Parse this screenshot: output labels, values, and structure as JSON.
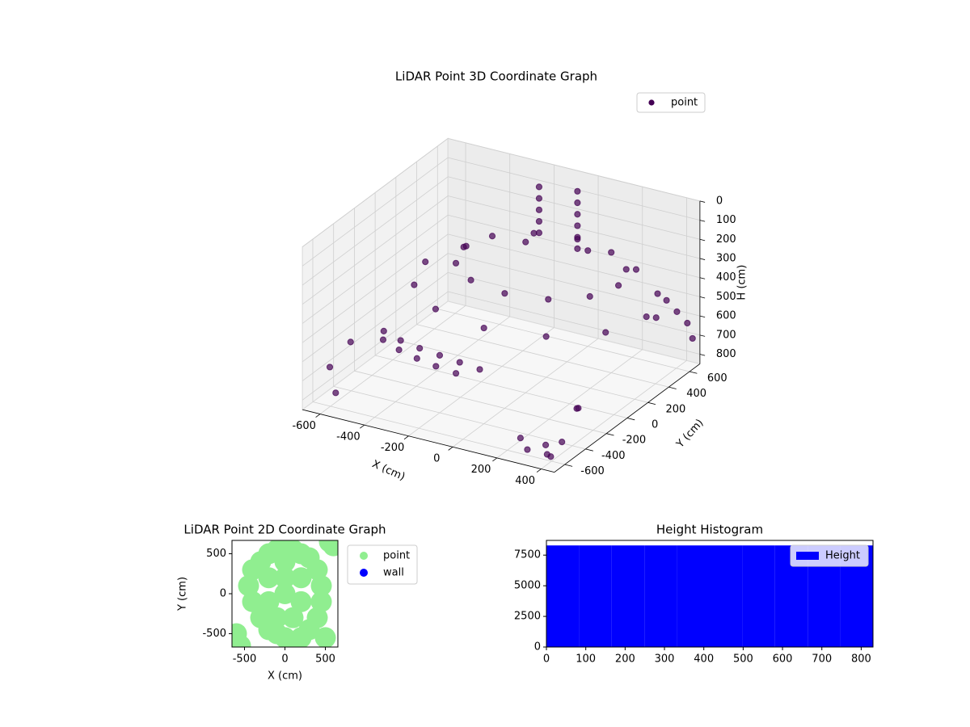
{
  "chart_data": [
    {
      "type": "scatter3d",
      "title": "LiDAR Point 3D Coordinate Graph",
      "xlabel": "X (cm)",
      "ylabel": "Y (cm)",
      "zlabel": "H (cm)",
      "series": [
        {
          "name": "point",
          "color": "#440154",
          "x": [
            -150,
            -150,
            -150,
            -150,
            -150,
            0,
            0,
            0,
            0,
            0,
            0,
            350,
            303,
            175,
            0,
            -175,
            -303,
            -350,
            -303,
            -175,
            0,
            175,
            303,
            500,
            433,
            250,
            0,
            -250,
            -433,
            -500,
            -433,
            -250,
            0,
            250,
            433,
            -500,
            -400,
            -300,
            -200,
            -100,
            0,
            -550,
            -450,
            -350,
            -250,
            -150,
            350,
            380,
            400,
            300,
            420,
            250,
            450,
            450,
            450,
            450,
            450,
            380,
            420,
            -650,
            -600,
            -650
          ],
          "y": [
            450,
            450,
            450,
            450,
            450,
            500,
            500,
            500,
            500,
            500,
            500,
            150,
            325,
            453,
            500,
            453,
            325,
            150,
            -25,
            -153,
            -200,
            -153,
            -25,
            100,
            350,
            533,
            600,
            533,
            350,
            100,
            -150,
            -333,
            -400,
            -333,
            -150,
            -300,
            -350,
            -380,
            -400,
            -420,
            -440,
            -200,
            -260,
            -300,
            -330,
            -350,
            -550,
            -600,
            -500,
            -620,
            -650,
            -580,
            300,
            500,
            600,
            650,
            400,
            -300,
            -400,
            -500,
            -550,
            -300
          ],
          "z": [
            0,
            60,
            120,
            180,
            240,
            0,
            60,
            120,
            180,
            240,
            300,
            250,
            250,
            250,
            250,
            250,
            250,
            250,
            250,
            250,
            250,
            250,
            250,
            350,
            350,
            350,
            350,
            350,
            350,
            350,
            350,
            350,
            350,
            350,
            350,
            550,
            550,
            550,
            550,
            550,
            550,
            650,
            650,
            650,
            650,
            650,
            800,
            820,
            790,
            810,
            800,
            780,
            450,
            500,
            600,
            700,
            400,
            700,
            650,
            700,
            800,
            650
          ]
        }
      ],
      "xlim": [
        -680,
        460
      ],
      "ylim": [
        -700,
        700
      ],
      "zlim": [
        850,
        0
      ],
      "xticks": [
        -600,
        -400,
        -200,
        0,
        200,
        400
      ],
      "yticks": [
        -600,
        -400,
        -200,
        0,
        200,
        400,
        600
      ],
      "zticks": [
        0,
        100,
        200,
        300,
        400,
        500,
        600,
        700,
        800
      ],
      "grid": true,
      "legend": "upper right"
    },
    {
      "type": "scatter",
      "title": "LiDAR Point 2D Coordinate Graph",
      "xlabel": "X (cm)",
      "ylabel": "Y (cm)",
      "series": [
        {
          "name": "point",
          "color": "#90ee90",
          "x": [
            -300,
            -200,
            -100,
            0,
            100,
            200,
            300,
            400,
            450,
            450,
            400,
            300,
            200,
            100,
            0,
            -100,
            -200,
            -300,
            -400,
            -450,
            -400,
            -200,
            0,
            200,
            -200,
            0,
            200,
            -100,
            100,
            0,
            -600,
            -550,
            500,
            550,
            600
          ],
          "y": [
            400,
            500,
            550,
            600,
            550,
            500,
            450,
            300,
            100,
            -100,
            -300,
            -450,
            -550,
            -600,
            -550,
            -500,
            -450,
            -300,
            -100,
            100,
            300,
            200,
            200,
            200,
            -100,
            0,
            -100,
            -300,
            -300,
            400,
            -500,
            -650,
            -550,
            650,
            600
          ]
        },
        {
          "name": "wall",
          "color": "#0000ff",
          "x": [],
          "y": []
        }
      ],
      "xlim": [
        -655,
        655
      ],
      "ylim": [
        -667,
        667
      ],
      "xticks": [
        -500,
        0,
        500
      ],
      "yticks": [
        -500,
        0,
        500
      ],
      "legend": "outside right"
    },
    {
      "type": "histogram",
      "title": "Height Histogram",
      "series_name": "Height",
      "color": "#0000ff",
      "bins": [
        0,
        83,
        166,
        249,
        332,
        415,
        498,
        581,
        664,
        747,
        830
      ],
      "counts": [
        8290,
        8290,
        8290,
        8290,
        8290,
        8290,
        8290,
        8290,
        8290,
        8290
      ],
      "xlim": [
        0,
        830
      ],
      "ylim": [
        0,
        8700
      ],
      "xticks": [
        0,
        100,
        200,
        300,
        400,
        500,
        600,
        700,
        800
      ],
      "yticks": [
        0,
        2500,
        5000,
        7500
      ],
      "legend": "upper right"
    }
  ]
}
